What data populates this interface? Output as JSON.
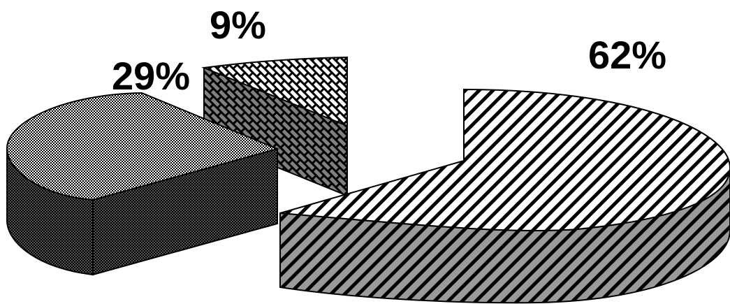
{
  "chart_data": {
    "type": "pie",
    "style": "3d-exploded",
    "slices": [
      {
        "label": "62%",
        "value": 62,
        "pattern": "diagonal-hatch"
      },
      {
        "label": "29%",
        "value": 29,
        "pattern": "dotted"
      },
      {
        "label": "9%",
        "value": 9,
        "pattern": "diagonal-brick"
      }
    ],
    "legend": false,
    "colors": {
      "stroke": "#000000",
      "background": "#ffffff"
    }
  }
}
